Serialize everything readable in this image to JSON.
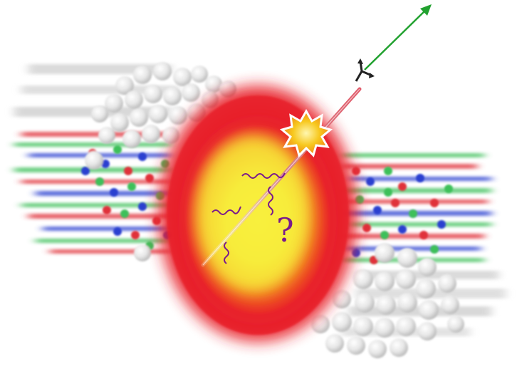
{
  "illustration": {
    "annotation": "?",
    "colors": {
      "fireball_outer": "#e8202a",
      "fireball_inner": "#f7f03a",
      "gluon": "#7a1a8c",
      "jet": "#d8868a",
      "photon_arrow": "#21a12f",
      "flash": "#f7c81e",
      "quark_red": "#e0303a",
      "quark_green": "#3cc05a",
      "quark_blue": "#2b3fd0",
      "nucleon": "#e6e6e6"
    },
    "icons": [
      "nucleon-cluster-left",
      "nucleon-cluster-right",
      "quark-gluon-plasma-fireball",
      "gluon-wavy-lines",
      "jet-track",
      "collision-flash",
      "photon-arrow",
      "coordinate-axes-icon"
    ]
  }
}
